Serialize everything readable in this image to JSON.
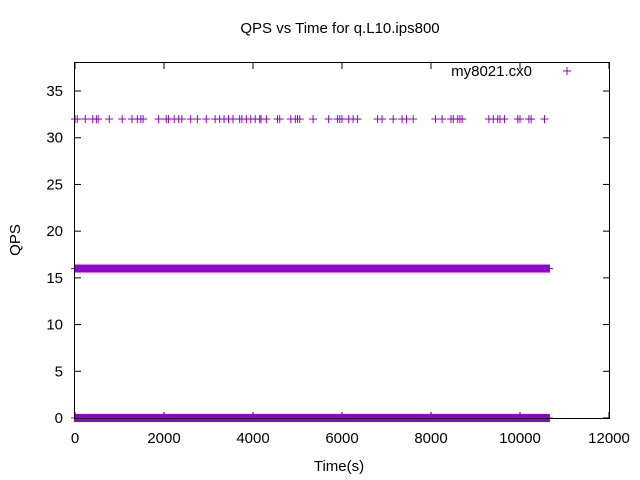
{
  "chart_data": {
    "type": "scatter",
    "title": "QPS vs Time for q.L10.ips800",
    "xlabel": "Time(s)",
    "ylabel": "QPS",
    "xlim": [
      0,
      12000
    ],
    "ylim": [
      0,
      38
    ],
    "xticks": [
      0,
      2000,
      4000,
      6000,
      8000,
      10000,
      12000
    ],
    "yticks": [
      0,
      5,
      10,
      15,
      20,
      25,
      30,
      35
    ],
    "grid": false,
    "legend_position": "top-right",
    "marker": "+",
    "series": [
      {
        "name": "my8021.cx0",
        "color": "#9400d3",
        "dense_bands": [
          {
            "y": 0,
            "x_from": 0,
            "x_to": 10650
          },
          {
            "y": 16,
            "x_from": 0,
            "x_to": 10650
          }
        ],
        "points": [
          [
            0,
            32
          ],
          [
            50,
            32
          ],
          [
            230,
            32
          ],
          [
            400,
            32
          ],
          [
            480,
            32
          ],
          [
            520,
            32
          ],
          [
            770,
            32
          ],
          [
            1060,
            32
          ],
          [
            1280,
            32
          ],
          [
            1400,
            32
          ],
          [
            1480,
            32
          ],
          [
            1530,
            32
          ],
          [
            1880,
            32
          ],
          [
            2050,
            32
          ],
          [
            2100,
            32
          ],
          [
            2230,
            32
          ],
          [
            2330,
            32
          ],
          [
            2400,
            32
          ],
          [
            2600,
            32
          ],
          [
            2750,
            32
          ],
          [
            2950,
            32
          ],
          [
            3150,
            32
          ],
          [
            3250,
            32
          ],
          [
            3350,
            32
          ],
          [
            3450,
            32
          ],
          [
            3550,
            32
          ],
          [
            3700,
            32
          ],
          [
            3750,
            32
          ],
          [
            3850,
            32
          ],
          [
            3950,
            32
          ],
          [
            4050,
            32
          ],
          [
            4150,
            32
          ],
          [
            4180,
            32
          ],
          [
            4300,
            32
          ],
          [
            4550,
            32
          ],
          [
            4600,
            32
          ],
          [
            4850,
            32
          ],
          [
            4950,
            32
          ],
          [
            5000,
            32
          ],
          [
            5050,
            32
          ],
          [
            5350,
            32
          ],
          [
            5700,
            32
          ],
          [
            5900,
            32
          ],
          [
            5950,
            32
          ],
          [
            6000,
            32
          ],
          [
            6150,
            32
          ],
          [
            6250,
            32
          ],
          [
            6350,
            32
          ],
          [
            6800,
            32
          ],
          [
            6900,
            32
          ],
          [
            7150,
            32
          ],
          [
            7350,
            32
          ],
          [
            7450,
            32
          ],
          [
            7600,
            32
          ],
          [
            8100,
            32
          ],
          [
            8250,
            32
          ],
          [
            8450,
            32
          ],
          [
            8500,
            32
          ],
          [
            8600,
            32
          ],
          [
            8650,
            32
          ],
          [
            8700,
            32
          ],
          [
            9300,
            32
          ],
          [
            9400,
            32
          ],
          [
            9500,
            32
          ],
          [
            9550,
            32
          ],
          [
            9650,
            32
          ],
          [
            9950,
            32
          ],
          [
            10000,
            32
          ],
          [
            10200,
            32
          ],
          [
            10250,
            32
          ],
          [
            10550,
            32
          ]
        ]
      }
    ]
  }
}
